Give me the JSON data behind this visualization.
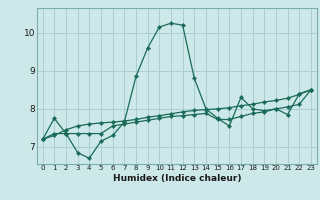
{
  "xlabel": "Humidex (Indice chaleur)",
  "background_color": "#cde8e8",
  "grid_color": "#aacfcf",
  "line_color": "#1a6b5a",
  "xlim": [
    -0.5,
    23.5
  ],
  "ylim": [
    6.55,
    10.65
  ],
  "yticks": [
    7,
    8,
    9,
    10
  ],
  "xtick_labels": [
    "0",
    "1",
    "2",
    "3",
    "4",
    "5",
    "6",
    "7",
    "8",
    "9",
    "10",
    "11",
    "12",
    "13",
    "14",
    "15",
    "16",
    "17",
    "18",
    "19",
    "20",
    "21",
    "22",
    "23"
  ],
  "series": [
    [
      7.2,
      7.75,
      7.35,
      6.85,
      6.7,
      7.15,
      7.3,
      7.65,
      8.85,
      9.6,
      10.15,
      10.25,
      10.2,
      8.8,
      8.0,
      7.75,
      7.55,
      8.3,
      8.0,
      7.95,
      8.0,
      7.85,
      8.4,
      8.5
    ],
    [
      7.2,
      7.35,
      7.35,
      7.35,
      7.35,
      7.35,
      7.55,
      7.6,
      7.65,
      7.7,
      7.75,
      7.8,
      7.82,
      7.85,
      7.88,
      7.72,
      7.72,
      7.8,
      7.88,
      7.92,
      8.0,
      8.05,
      8.12,
      8.5
    ],
    [
      7.2,
      7.3,
      7.45,
      7.55,
      7.6,
      7.63,
      7.65,
      7.68,
      7.72,
      7.78,
      7.82,
      7.87,
      7.92,
      7.96,
      7.98,
      8.0,
      8.03,
      8.08,
      8.12,
      8.18,
      8.22,
      8.28,
      8.38,
      8.5
    ]
  ]
}
